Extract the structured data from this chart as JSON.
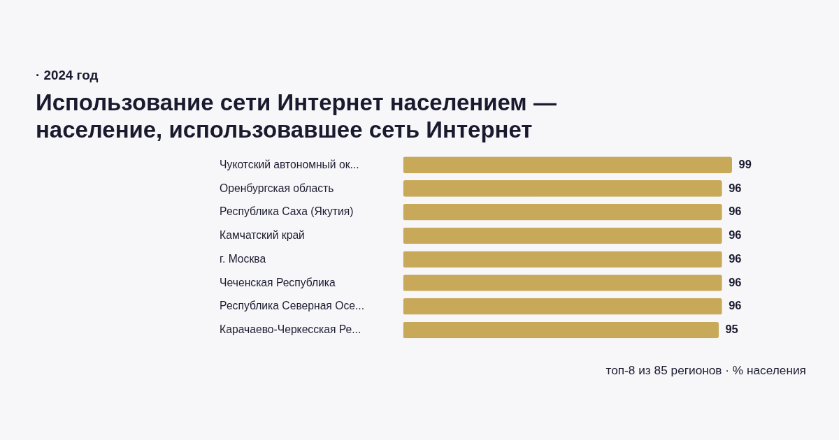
{
  "chart_data": {
    "type": "bar",
    "orientation": "horizontal",
    "subtitle": "· 2024 год",
    "title": "Использование сети Интернет населением — население, использовавшее сеть Интернет",
    "categories": [
      "Чукотский автономный ок...",
      "Оренбургская область",
      "Республика Саха (Якутия)",
      "Камчатский край",
      "г. Москва",
      "Чеченская Республика",
      "Республика Северная Осе...",
      "Карачаево-Черкесская Ре..."
    ],
    "values": [
      99,
      96,
      96,
      96,
      96,
      96,
      96,
      95
    ],
    "color": "#c8a95a",
    "data_labels": true,
    "annotations": [
      "топ-8 из 85 регионов · % населения"
    ]
  }
}
